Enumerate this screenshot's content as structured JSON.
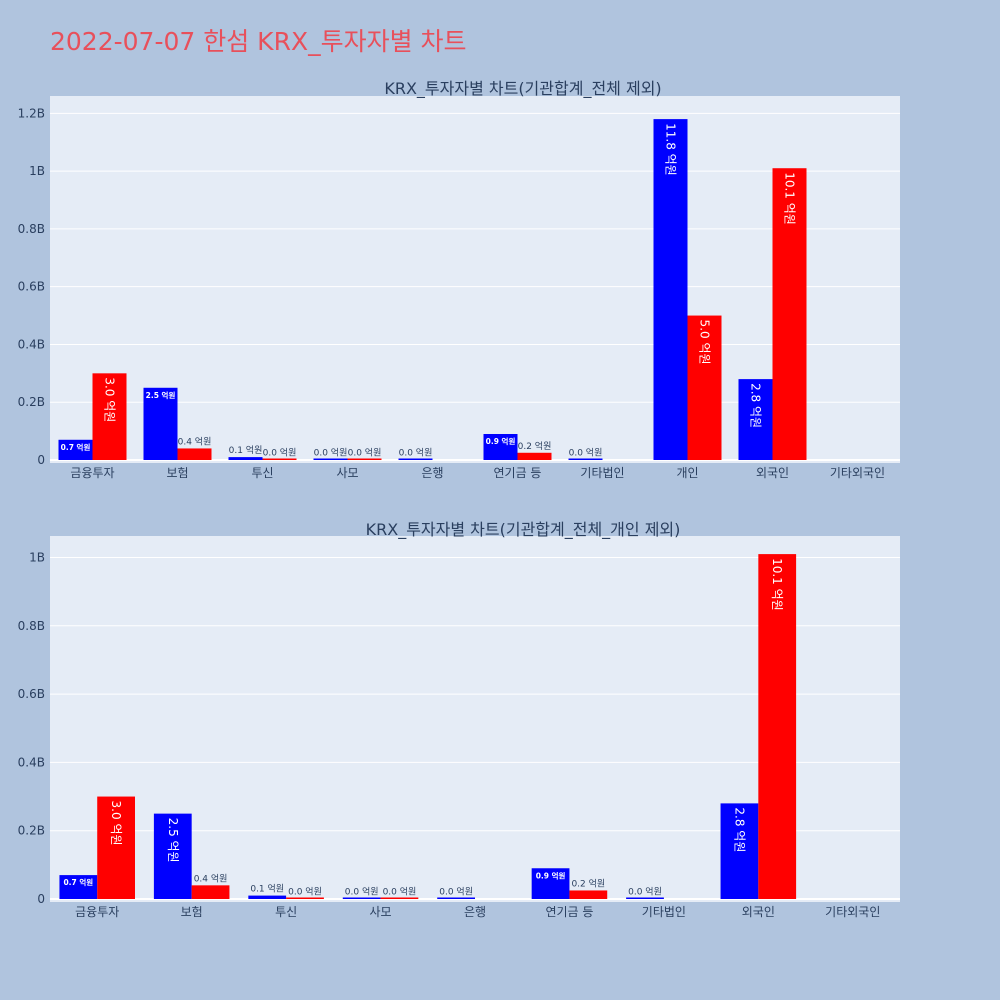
{
  "page": {
    "title": "2022-07-07 한섬 KRX_투자자별 차트"
  },
  "colors": {
    "background": "#b0c4de",
    "plot_bg": "#e5ecf6",
    "title": "#e8505b",
    "sell": "#0000ff",
    "buy": "#ff0000"
  },
  "chart_data": [
    {
      "type": "bar",
      "title": "KRX_투자자별 차트(기관합계_전체 제외)",
      "categories": [
        "금융투자",
        "보험",
        "투신",
        "사모",
        "은행",
        "연기금 등",
        "기타법인",
        "개인",
        "외국인",
        "기타외국인"
      ],
      "yticks": [
        {
          "value": 0,
          "label": "0"
        },
        {
          "value": 200000000,
          "label": "0.2B"
        },
        {
          "value": 400000000,
          "label": "0.4B"
        },
        {
          "value": 600000000,
          "label": "0.6B"
        },
        {
          "value": 800000000,
          "label": "0.8B"
        },
        {
          "value": 1000000000,
          "label": "1B"
        },
        {
          "value": 1200000000,
          "label": "1.2B"
        }
      ],
      "ylim": [
        0,
        1260000000
      ],
      "grid": true,
      "series": [
        {
          "color": "#0000ff",
          "values": [
            70000000,
            250000000,
            10000000,
            2000000,
            1000000,
            90000000,
            1000000,
            1180000000,
            280000000,
            null
          ],
          "labels": [
            "0.7 억원",
            "2.5 억원",
            "0.1 억원",
            "0.0 억원",
            "0.0 억원",
            "0.9 억원",
            "0.0 억원",
            "11.8 억원",
            "2.8 억원",
            ""
          ]
        },
        {
          "color": "#ff0000",
          "values": [
            300000000,
            40000000,
            2000000,
            2000000,
            null,
            25000000,
            null,
            500000000,
            1010000000,
            null
          ],
          "labels": [
            "3.0 억원",
            "0.4 억원",
            "0.0 억원",
            "0.0 억원",
            "",
            "0.2 억원",
            "",
            "5.0 억원",
            "10.1 억원",
            ""
          ]
        }
      ]
    },
    {
      "type": "bar",
      "title": "KRX_투자자별 차트(기관합계_전체_개인 제외)",
      "categories": [
        "금융투자",
        "보험",
        "투신",
        "사모",
        "은행",
        "연기금 등",
        "기타법인",
        "외국인",
        "기타외국인"
      ],
      "yticks": [
        {
          "value": 0,
          "label": "0"
        },
        {
          "value": 200000000,
          "label": "0.2B"
        },
        {
          "value": 400000000,
          "label": "0.4B"
        },
        {
          "value": 600000000,
          "label": "0.6B"
        },
        {
          "value": 800000000,
          "label": "0.8B"
        },
        {
          "value": 1000000000,
          "label": "1B"
        }
      ],
      "ylim": [
        0,
        1063000000
      ],
      "grid": true,
      "series": [
        {
          "color": "#0000ff",
          "values": [
            70000000,
            250000000,
            10000000,
            2000000,
            1000000,
            90000000,
            1000000,
            280000000,
            null
          ],
          "labels": [
            "0.7 억원",
            "2.5 억원",
            "0.1 억원",
            "0.0 억원",
            "0.0 억원",
            "0.9 억원",
            "0.0 억원",
            "2.8 억원",
            ""
          ]
        },
        {
          "color": "#ff0000",
          "values": [
            300000000,
            40000000,
            2000000,
            2000000,
            null,
            25000000,
            null,
            1010000000,
            null
          ],
          "labels": [
            "3.0 억원",
            "0.4 억원",
            "0.0 억원",
            "0.0 억원",
            "",
            "0.2 억원",
            "",
            "10.1 억원",
            ""
          ]
        }
      ]
    }
  ]
}
